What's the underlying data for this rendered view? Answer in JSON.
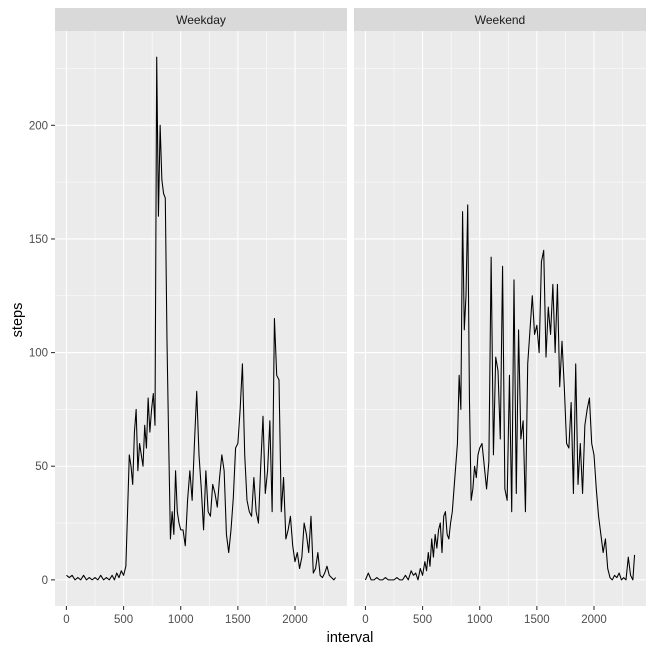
{
  "chart_data": {
    "type": "line",
    "xlabel": "interval",
    "ylabel": "steps",
    "xlim": [
      -100,
      2455
    ],
    "ylim": [
      -11.5,
      241.5
    ],
    "x_ticks": [
      0,
      500,
      1000,
      1500,
      2000
    ],
    "x_tick_labels": [
      "0",
      "500",
      "1000",
      "1500",
      "2000"
    ],
    "y_ticks": [
      0,
      50,
      100,
      150,
      200
    ],
    "y_tick_labels": [
      "0",
      "50",
      "100",
      "150",
      "200"
    ],
    "grid": true,
    "panels": [
      {
        "name": "Weekday",
        "x": [
          0,
          25,
          50,
          75,
          100,
          125,
          150,
          175,
          200,
          225,
          250,
          275,
          300,
          325,
          350,
          375,
          400,
          420,
          440,
          460,
          480,
          500,
          520,
          535,
          550,
          565,
          580,
          595,
          610,
          625,
          640,
          655,
          670,
          685,
          700,
          715,
          730,
          745,
          760,
          775,
          790,
          805,
          820,
          835,
          850,
          865,
          880,
          895,
          910,
          925,
          940,
          955,
          970,
          985,
          1000,
          1020,
          1040,
          1060,
          1080,
          1100,
          1120,
          1140,
          1160,
          1180,
          1200,
          1220,
          1240,
          1260,
          1280,
          1300,
          1320,
          1340,
          1360,
          1380,
          1400,
          1420,
          1440,
          1460,
          1480,
          1500,
          1520,
          1540,
          1560,
          1580,
          1600,
          1620,
          1640,
          1660,
          1680,
          1700,
          1720,
          1740,
          1760,
          1780,
          1800,
          1820,
          1840,
          1860,
          1880,
          1900,
          1920,
          1940,
          1960,
          1980,
          2000,
          2020,
          2040,
          2060,
          2080,
          2100,
          2120,
          2140,
          2160,
          2180,
          2200,
          2220,
          2240,
          2260,
          2280,
          2300,
          2320,
          2340,
          2355
        ],
        "y": [
          2,
          1,
          2,
          0,
          1,
          0,
          2,
          0,
          1,
          0,
          1,
          0,
          2,
          0,
          1,
          0,
          2,
          0,
          3,
          1,
          4,
          2,
          6,
          30,
          55,
          50,
          42,
          65,
          75,
          48,
          60,
          55,
          50,
          68,
          58,
          80,
          65,
          75,
          82,
          68,
          230,
          160,
          200,
          176,
          170,
          168,
          105,
          60,
          18,
          30,
          20,
          48,
          30,
          25,
          22,
          22,
          15,
          35,
          48,
          35,
          60,
          83,
          55,
          40,
          22,
          48,
          30,
          28,
          42,
          38,
          32,
          45,
          55,
          48,
          20,
          12,
          22,
          36,
          58,
          60,
          75,
          95,
          55,
          35,
          30,
          28,
          45,
          30,
          25,
          50,
          72,
          38,
          48,
          70,
          30,
          115,
          90,
          88,
          30,
          45,
          18,
          22,
          28,
          15,
          8,
          12,
          5,
          10,
          25,
          20,
          12,
          28,
          3,
          5,
          12,
          2,
          1,
          3,
          6,
          2,
          1,
          0,
          1
        ]
      },
      {
        "name": "Weekend",
        "x": [
          0,
          25,
          50,
          75,
          100,
          125,
          150,
          175,
          200,
          225,
          250,
          275,
          300,
          325,
          350,
          375,
          400,
          420,
          440,
          460,
          480,
          500,
          520,
          535,
          550,
          565,
          580,
          595,
          610,
          625,
          640,
          655,
          670,
          685,
          700,
          715,
          730,
          745,
          760,
          775,
          790,
          805,
          820,
          835,
          850,
          865,
          880,
          895,
          910,
          925,
          940,
          955,
          970,
          985,
          1000,
          1020,
          1040,
          1060,
          1080,
          1100,
          1120,
          1140,
          1160,
          1180,
          1200,
          1220,
          1240,
          1260,
          1280,
          1300,
          1320,
          1340,
          1360,
          1380,
          1400,
          1420,
          1440,
          1460,
          1480,
          1500,
          1520,
          1540,
          1560,
          1580,
          1600,
          1620,
          1640,
          1660,
          1680,
          1700,
          1720,
          1740,
          1760,
          1780,
          1800,
          1820,
          1840,
          1860,
          1880,
          1900,
          1920,
          1940,
          1960,
          1980,
          2000,
          2020,
          2040,
          2060,
          2080,
          2100,
          2120,
          2140,
          2160,
          2180,
          2200,
          2220,
          2240,
          2260,
          2280,
          2300,
          2320,
          2340,
          2355
        ],
        "y": [
          0,
          3,
          0,
          0,
          1,
          0,
          0,
          1,
          0,
          0,
          0,
          1,
          0,
          0,
          2,
          0,
          4,
          2,
          3,
          0,
          5,
          2,
          8,
          4,
          12,
          6,
          18,
          10,
          20,
          14,
          22,
          25,
          12,
          28,
          30,
          20,
          18,
          25,
          30,
          40,
          50,
          60,
          90,
          75,
          162,
          110,
          125,
          165,
          80,
          35,
          40,
          50,
          45,
          55,
          58,
          60,
          50,
          40,
          52,
          142,
          55,
          98,
          92,
          62,
          138,
          40,
          35,
          90,
          30,
          132,
          38,
          110,
          62,
          70,
          30,
          95,
          110,
          125,
          108,
          112,
          100,
          140,
          145,
          98,
          120,
          108,
          130,
          100,
          130,
          85,
          105,
          85,
          60,
          58,
          78,
          38,
          95,
          42,
          60,
          38,
          68,
          75,
          80,
          60,
          55,
          40,
          28,
          20,
          12,
          18,
          5,
          1,
          0,
          2,
          1,
          3,
          0,
          1,
          0,
          10,
          2,
          0,
          11
        ]
      }
    ]
  }
}
